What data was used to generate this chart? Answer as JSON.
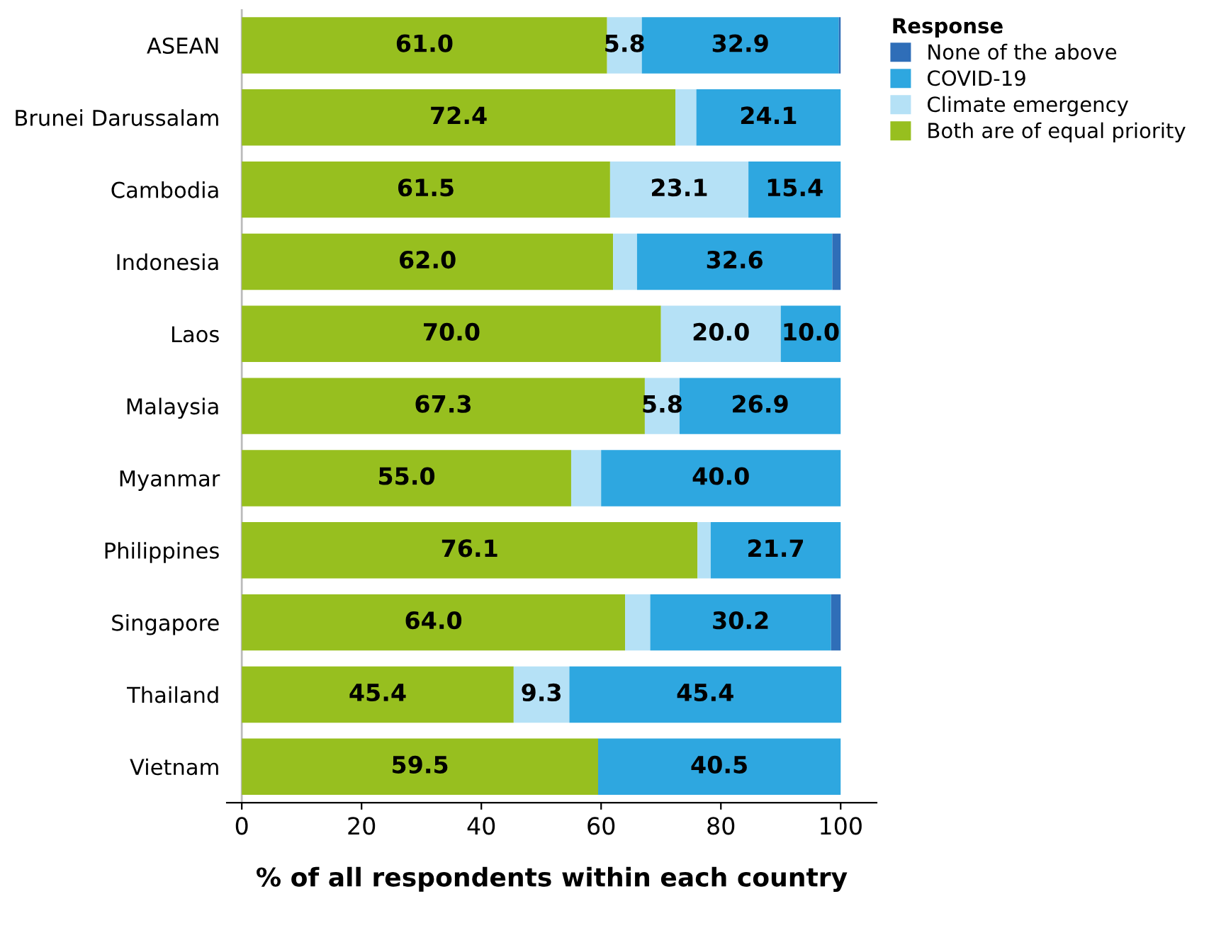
{
  "chart_data": {
    "type": "bar",
    "orientation": "horizontal",
    "stacked": true,
    "xlabel": "% of all respondents within each country",
    "legend_title": "Response",
    "legend": "top right",
    "categories": [
      "ASEAN",
      "Brunei Darussalam",
      "Cambodia",
      "Indonesia",
      "Laos",
      "Malaysia",
      "Myanmar",
      "Philippines",
      "Singapore",
      "Thailand",
      "Vietnam"
    ],
    "series": [
      {
        "name": "Both are of equal priority",
        "color": "#97bf1f",
        "values": [
          61.0,
          72.4,
          61.5,
          62.0,
          70.0,
          67.3,
          55.0,
          76.1,
          64.0,
          45.4,
          59.5
        ],
        "value_labels": [
          "61.0",
          "72.4",
          "61.5",
          "62.0",
          "70.0",
          "67.3",
          "55.0",
          "76.1",
          "64.0",
          "45.4",
          "59.5"
        ]
      },
      {
        "name": "Climate emergency",
        "color": "#b5e1f6",
        "values": [
          5.8,
          3.5,
          23.1,
          4.0,
          20.0,
          5.8,
          5.0,
          2.2,
          4.2,
          9.3,
          null
        ],
        "value_labels": [
          "5.8",
          null,
          "23.1",
          null,
          "20.0",
          "5.8",
          null,
          null,
          null,
          "9.3",
          null
        ]
      },
      {
        "name": "COVID-19",
        "color": "#2ea7e0",
        "values": [
          32.9,
          24.1,
          15.4,
          32.6,
          10.0,
          26.9,
          40.0,
          21.7,
          30.2,
          45.4,
          40.5
        ],
        "value_labels": [
          "32.9",
          "24.1",
          "15.4",
          "32.6",
          "10.0",
          "26.9",
          "40.0",
          "21.7",
          "30.2",
          "45.4",
          "40.5"
        ]
      },
      {
        "name": "None of the above",
        "color": "#2f6eb8",
        "values": [
          0.3,
          null,
          null,
          1.4,
          null,
          null,
          null,
          null,
          1.6,
          null,
          null
        ],
        "value_labels": [
          null,
          null,
          null,
          null,
          null,
          null,
          null,
          null,
          null,
          null,
          null
        ]
      }
    ],
    "xlim": [
      -2.5,
      106
    ],
    "xticks": [
      0,
      20,
      40,
      60,
      80,
      100
    ],
    "grid": false
  }
}
